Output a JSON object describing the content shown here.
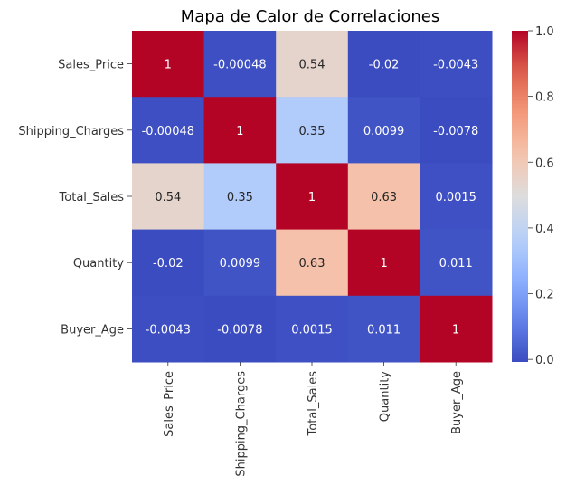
{
  "chart_data": {
    "type": "heatmap",
    "title": "Mapa de Calor de Correlaciones",
    "xlabel": "",
    "ylabel": "",
    "rows": [
      "Sales_Price",
      "Shipping_Charges",
      "Total_Sales",
      "Quantity",
      "Buyer_Age"
    ],
    "columns": [
      "Sales_Price",
      "Shipping_Charges",
      "Total_Sales",
      "Quantity",
      "Buyer_Age"
    ],
    "values": [
      [
        1,
        -0.00048,
        0.54,
        -0.02,
        -0.0043
      ],
      [
        -0.00048,
        1,
        0.35,
        0.0099,
        -0.0078
      ],
      [
        0.54,
        0.35,
        1,
        0.63,
        0.0015
      ],
      [
        -0.02,
        0.0099,
        0.63,
        1,
        0.011
      ],
      [
        -0.0043,
        -0.0078,
        0.0015,
        0.011,
        1
      ]
    ],
    "labels": [
      [
        "1",
        "-0.00048",
        "0.54",
        "-0.02",
        "-0.0043"
      ],
      [
        "-0.00048",
        "1",
        "0.35",
        "0.0099",
        "-0.0078"
      ],
      [
        "0.54",
        "0.35",
        "1",
        "0.63",
        "0.0015"
      ],
      [
        "-0.02",
        "0.0099",
        "0.63",
        "1",
        "0.011"
      ],
      [
        "-0.0043",
        "-0.0078",
        "0.0015",
        "0.011",
        "1"
      ]
    ],
    "colormap": "coolwarm",
    "vmin": -0.0078,
    "vmax": 1,
    "colorbar_ticks": [
      0.0,
      0.2,
      0.4,
      0.6,
      0.8,
      1.0
    ],
    "colorbar_tick_labels": [
      "0.0",
      "0.2",
      "0.4",
      "0.6",
      "0.8",
      "1.0"
    ],
    "grid": false
  }
}
